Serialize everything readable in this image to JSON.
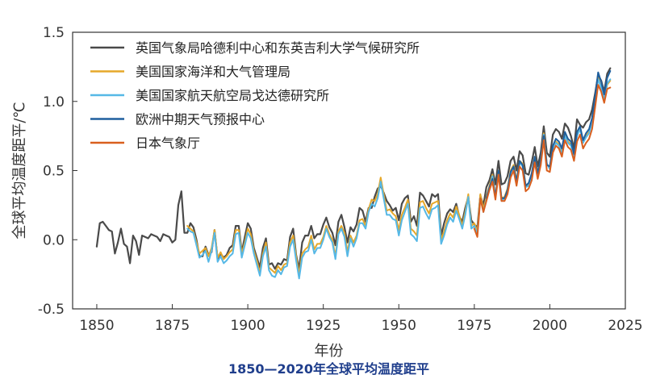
{
  "caption": "1850—2020年全球平均温度距平",
  "chart_data": {
    "type": "line",
    "xlabel": "年份",
    "ylabel": "全球平均温度距平/℃",
    "xlim": [
      1842,
      2025
    ],
    "ylim": [
      -0.5,
      1.5
    ],
    "xticks": [
      "1850",
      "1875",
      "1900",
      "1925",
      "1950",
      "1975",
      "2000",
      "2025"
    ],
    "yticks": [
      "-0.5",
      "0.0",
      "0.5",
      "1.0",
      "1.5"
    ],
    "legend_position": "top-left",
    "grid": false,
    "series": [
      {
        "name": "英国气象局哈德利中心和东英吉利大学气候研究所",
        "color": "#4a4a4a",
        "x": [
          1850,
          1851,
          1852,
          1853,
          1854,
          1855,
          1856,
          1857,
          1858,
          1859,
          1860,
          1861,
          1862,
          1863,
          1864,
          1865,
          1866,
          1867,
          1868,
          1869,
          1870,
          1871,
          1872,
          1873,
          1874,
          1875,
          1876,
          1877,
          1878,
          1879,
          1880,
          1881,
          1882,
          1883,
          1884,
          1885,
          1886,
          1887,
          1888,
          1889,
          1890,
          1891,
          1892,
          1893,
          1894,
          1895,
          1896,
          1897,
          1898,
          1899,
          1900,
          1901,
          1902,
          1903,
          1904,
          1905,
          1906,
          1907,
          1908,
          1909,
          1910,
          1911,
          1912,
          1913,
          1914,
          1915,
          1916,
          1917,
          1918,
          1919,
          1920,
          1921,
          1922,
          1923,
          1924,
          1925,
          1926,
          1927,
          1928,
          1929,
          1930,
          1931,
          1932,
          1933,
          1934,
          1935,
          1936,
          1937,
          1938,
          1939,
          1940,
          1941,
          1942,
          1943,
          1944,
          1945,
          1946,
          1947,
          1948,
          1949,
          1950,
          1951,
          1952,
          1953,
          1954,
          1955,
          1956,
          1957,
          1958,
          1959,
          1960,
          1961,
          1962,
          1963,
          1964,
          1965,
          1966,
          1967,
          1968,
          1969,
          1970,
          1971,
          1972,
          1973,
          1974,
          1975,
          1976,
          1977,
          1978,
          1979,
          1980,
          1981,
          1982,
          1983,
          1984,
          1985,
          1986,
          1987,
          1988,
          1989,
          1990,
          1991,
          1992,
          1993,
          1994,
          1995,
          1996,
          1997,
          1998,
          1999,
          2000,
          2001,
          2002,
          2003,
          2004,
          2005,
          2006,
          2007,
          2008,
          2009,
          2010,
          2011,
          2012,
          2013,
          2014,
          2015,
          2016,
          2017,
          2018,
          2019,
          2020
        ],
        "y": [
          -0.05,
          0.12,
          0.13,
          0.1,
          0.07,
          0.06,
          -0.1,
          -0.02,
          0.08,
          -0.03,
          -0.05,
          -0.17,
          0.03,
          -0.01,
          -0.11,
          0.03,
          0.02,
          0.01,
          0.04,
          0.03,
          0.02,
          -0.01,
          0.04,
          0.03,
          0.02,
          -0.02,
          0.0,
          0.25,
          0.35,
          0.05,
          0.05,
          0.12,
          0.09,
          0.0,
          -0.12,
          -0.12,
          -0.05,
          -0.11,
          -0.09,
          0.07,
          -0.14,
          -0.1,
          -0.13,
          -0.11,
          -0.06,
          -0.04,
          0.1,
          0.1,
          -0.09,
          0.02,
          0.12,
          0.08,
          -0.06,
          -0.13,
          -0.2,
          -0.06,
          0.01,
          -0.18,
          -0.17,
          -0.21,
          -0.17,
          -0.18,
          -0.14,
          -0.15,
          0.02,
          0.08,
          -0.11,
          -0.21,
          -0.02,
          0.03,
          0.03,
          0.1,
          0.01,
          0.04,
          0.04,
          0.11,
          0.16,
          0.09,
          0.05,
          -0.04,
          0.13,
          0.18,
          0.09,
          -0.02,
          0.09,
          0.06,
          0.11,
          0.23,
          0.21,
          0.13,
          0.23,
          0.23,
          0.31,
          0.37,
          0.39,
          0.34,
          0.28,
          0.25,
          0.21,
          0.23,
          0.14,
          0.26,
          0.3,
          0.32,
          0.13,
          0.17,
          0.1,
          0.34,
          0.32,
          0.28,
          0.24,
          0.33,
          0.31,
          0.33,
          0.03,
          0.12,
          0.19,
          0.22,
          0.2,
          0.26,
          0.17,
          0.13,
          0.23,
          0.31,
          0.14,
          0.11,
          0.09,
          0.32,
          0.25,
          0.38,
          0.43,
          0.51,
          0.4,
          0.57,
          0.4,
          0.41,
          0.46,
          0.57,
          0.6,
          0.5,
          0.64,
          0.61,
          0.48,
          0.47,
          0.56,
          0.67,
          0.53,
          0.63,
          0.82,
          0.63,
          0.6,
          0.76,
          0.8,
          0.78,
          0.73,
          0.84,
          0.81,
          0.75,
          0.66,
          0.87,
          0.83,
          0.81,
          0.85,
          0.87,
          0.94,
          1.06,
          1.19,
          1.15,
          1.07,
          1.2,
          1.24
        ]
      },
      {
        "name": "美国国家海洋和大气管理局",
        "color": "#e6a82a",
        "x": [
          1880,
          1881,
          1882,
          1883,
          1884,
          1885,
          1886,
          1887,
          1888,
          1889,
          1890,
          1891,
          1892,
          1893,
          1894,
          1895,
          1896,
          1897,
          1898,
          1899,
          1900,
          1901,
          1902,
          1903,
          1904,
          1905,
          1906,
          1907,
          1908,
          1909,
          1910,
          1911,
          1912,
          1913,
          1914,
          1915,
          1916,
          1917,
          1918,
          1919,
          1920,
          1921,
          1922,
          1923,
          1924,
          1925,
          1926,
          1927,
          1928,
          1929,
          1930,
          1931,
          1932,
          1933,
          1934,
          1935,
          1936,
          1937,
          1938,
          1939,
          1940,
          1941,
          1942,
          1943,
          1944,
          1945,
          1946,
          1947,
          1948,
          1949,
          1950,
          1951,
          1952,
          1953,
          1954,
          1955,
          1956,
          1957,
          1958,
          1959,
          1960,
          1961,
          1962,
          1963,
          1964,
          1965,
          1966,
          1967,
          1968,
          1969,
          1970,
          1971,
          1972,
          1973,
          1974,
          1975,
          1976,
          1977,
          1978,
          1979,
          1980,
          1981,
          1982,
          1983,
          1984,
          1985,
          1986,
          1987,
          1988,
          1989,
          1990,
          1991,
          1992,
          1993,
          1994,
          1995,
          1996,
          1997,
          1998,
          1999,
          2000,
          2001,
          2002,
          2003,
          2004,
          2005,
          2006,
          2007,
          2008,
          2009,
          2010,
          2011,
          2012,
          2013,
          2014,
          2015,
          2016,
          2017,
          2018,
          2019,
          2020
        ],
        "y": [
          0.1,
          0.08,
          0.06,
          -0.02,
          -0.1,
          -0.08,
          -0.06,
          -0.12,
          -0.06,
          0.07,
          -0.13,
          -0.09,
          -0.14,
          -0.12,
          -0.09,
          -0.07,
          0.07,
          0.07,
          -0.1,
          -0.02,
          0.08,
          0.04,
          -0.08,
          -0.15,
          -0.24,
          -0.1,
          -0.02,
          -0.2,
          -0.22,
          -0.24,
          -0.19,
          -0.22,
          -0.18,
          -0.17,
          -0.02,
          0.03,
          -0.12,
          -0.25,
          -0.1,
          -0.07,
          -0.05,
          0.03,
          -0.07,
          -0.03,
          -0.03,
          0.02,
          0.1,
          0.04,
          0.0,
          -0.12,
          0.06,
          0.1,
          0.05,
          -0.09,
          0.03,
          -0.02,
          0.03,
          0.14,
          0.15,
          0.1,
          0.22,
          0.29,
          0.28,
          0.33,
          0.45,
          0.33,
          0.21,
          0.22,
          0.19,
          0.17,
          0.07,
          0.18,
          0.23,
          0.29,
          0.08,
          0.06,
          0.03,
          0.27,
          0.28,
          0.23,
          0.19,
          0.26,
          0.27,
          0.28,
          0.0,
          0.06,
          0.14,
          0.19,
          0.16,
          0.24,
          0.18,
          0.1,
          0.2,
          0.33,
          0.1,
          0.12,
          0.06,
          0.33,
          0.22,
          0.31,
          0.39,
          0.47,
          0.31,
          0.5,
          0.3,
          0.31,
          0.37,
          0.5,
          0.54,
          0.43,
          0.57,
          0.55,
          0.39,
          0.4,
          0.47,
          0.6,
          0.49,
          0.57,
          0.77,
          0.55,
          0.52,
          0.66,
          0.71,
          0.69,
          0.63,
          0.76,
          0.71,
          0.69,
          0.6,
          0.76,
          0.81,
          0.71,
          0.75,
          0.78,
          0.86,
          1.0,
          1.17,
          1.1,
          1.0,
          1.12,
          1.15
        ]
      },
      {
        "name": "美国国家航天航空局戈达德研究所",
        "color": "#56b8e6",
        "x": [
          1880,
          1881,
          1882,
          1883,
          1884,
          1885,
          1886,
          1887,
          1888,
          1889,
          1890,
          1891,
          1892,
          1893,
          1894,
          1895,
          1896,
          1897,
          1898,
          1899,
          1900,
          1901,
          1902,
          1903,
          1904,
          1905,
          1906,
          1907,
          1908,
          1909,
          1910,
          1911,
          1912,
          1913,
          1914,
          1915,
          1916,
          1917,
          1918,
          1919,
          1920,
          1921,
          1922,
          1923,
          1924,
          1925,
          1926,
          1927,
          1928,
          1929,
          1930,
          1931,
          1932,
          1933,
          1934,
          1935,
          1936,
          1937,
          1938,
          1939,
          1940,
          1941,
          1942,
          1943,
          1944,
          1945,
          1946,
          1947,
          1948,
          1949,
          1950,
          1951,
          1952,
          1953,
          1954,
          1955,
          1956,
          1957,
          1958,
          1959,
          1960,
          1961,
          1962,
          1963,
          1964,
          1965,
          1966,
          1967,
          1968,
          1969,
          1970,
          1971,
          1972,
          1973,
          1974,
          1975,
          1976,
          1977,
          1978,
          1979,
          1980,
          1981,
          1982,
          1983,
          1984,
          1985,
          1986,
          1987,
          1988,
          1989,
          1990,
          1991,
          1992,
          1993,
          1994,
          1995,
          1996,
          1997,
          1998,
          1999,
          2000,
          2001,
          2002,
          2003,
          2004,
          2005,
          2006,
          2007,
          2008,
          2009,
          2010,
          2011,
          2012,
          2013,
          2014,
          2015,
          2016,
          2017,
          2018,
          2019,
          2020
        ],
        "y": [
          0.08,
          0.06,
          0.05,
          -0.04,
          -0.13,
          -0.11,
          -0.08,
          -0.16,
          -0.08,
          0.05,
          -0.16,
          -0.12,
          -0.17,
          -0.15,
          -0.12,
          -0.1,
          0.04,
          0.05,
          -0.13,
          -0.04,
          0.05,
          0.01,
          -0.1,
          -0.18,
          -0.26,
          -0.12,
          -0.05,
          -0.22,
          -0.26,
          -0.27,
          -0.22,
          -0.25,
          -0.2,
          -0.19,
          -0.05,
          0.0,
          -0.15,
          -0.28,
          -0.13,
          -0.09,
          -0.08,
          0.0,
          -0.1,
          -0.06,
          -0.06,
          0.0,
          0.08,
          0.02,
          -0.02,
          -0.14,
          0.04,
          0.08,
          0.02,
          -0.12,
          0.01,
          -0.05,
          0.01,
          0.12,
          0.12,
          0.08,
          0.2,
          0.26,
          0.24,
          0.3,
          0.42,
          0.3,
          0.18,
          0.18,
          0.15,
          0.14,
          0.03,
          0.14,
          0.2,
          0.26,
          0.04,
          0.02,
          -0.01,
          0.23,
          0.24,
          0.19,
          0.15,
          0.22,
          0.23,
          0.25,
          -0.03,
          0.03,
          0.11,
          0.16,
          0.13,
          0.21,
          0.15,
          0.08,
          0.18,
          0.31,
          0.08,
          0.1,
          0.04,
          0.3,
          0.2,
          0.29,
          0.37,
          0.46,
          0.3,
          0.49,
          0.28,
          0.3,
          0.35,
          0.48,
          0.52,
          0.41,
          0.56,
          0.53,
          0.38,
          0.39,
          0.46,
          0.59,
          0.47,
          0.56,
          0.76,
          0.55,
          0.51,
          0.65,
          0.7,
          0.68,
          0.62,
          0.75,
          0.7,
          0.68,
          0.59,
          0.75,
          0.8,
          0.7,
          0.74,
          0.77,
          0.85,
          1.0,
          1.16,
          1.1,
          1.01,
          1.13,
          1.16
        ]
      },
      {
        "name": "欧洲中期天气预报中心",
        "color": "#1f5f9e",
        "x": [
          1979,
          1980,
          1981,
          1982,
          1983,
          1984,
          1985,
          1986,
          1987,
          1988,
          1989,
          1990,
          1991,
          1992,
          1993,
          1994,
          1995,
          1996,
          1997,
          1998,
          1999,
          2000,
          2001,
          2002,
          2003,
          2004,
          2005,
          2006,
          2007,
          2008,
          2009,
          2010,
          2011,
          2012,
          2013,
          2014,
          2015,
          2016,
          2017,
          2018,
          2019,
          2020
        ],
        "y": [
          0.3,
          0.38,
          0.44,
          0.31,
          0.5,
          0.3,
          0.3,
          0.36,
          0.49,
          0.53,
          0.42,
          0.57,
          0.54,
          0.39,
          0.41,
          0.48,
          0.6,
          0.48,
          0.58,
          0.75,
          0.54,
          0.53,
          0.68,
          0.73,
          0.71,
          0.66,
          0.78,
          0.73,
          0.71,
          0.62,
          0.78,
          0.82,
          0.72,
          0.77,
          0.8,
          0.88,
          1.04,
          1.21,
          1.14,
          1.05,
          1.17,
          1.22
        ]
      },
      {
        "name": "日本气象厅",
        "color": "#d95f1e",
        "x": [
          1975,
          1976,
          1977,
          1978,
          1979,
          1980,
          1981,
          1982,
          1983,
          1984,
          1985,
          1986,
          1987,
          1988,
          1989,
          1990,
          1991,
          1992,
          1993,
          1994,
          1995,
          1996,
          1997,
          1998,
          1999,
          2000,
          2001,
          2002,
          2003,
          2004,
          2005,
          2006,
          2007,
          2008,
          2009,
          2010,
          2011,
          2012,
          2013,
          2014,
          2015,
          2016,
          2017,
          2018,
          2019,
          2020
        ],
        "y": [
          0.08,
          0.02,
          0.3,
          0.2,
          0.28,
          0.36,
          0.42,
          0.29,
          0.47,
          0.28,
          0.28,
          0.33,
          0.45,
          0.5,
          0.39,
          0.53,
          0.5,
          0.35,
          0.37,
          0.43,
          0.56,
          0.44,
          0.54,
          0.72,
          0.5,
          0.49,
          0.63,
          0.68,
          0.66,
          0.6,
          0.72,
          0.67,
          0.65,
          0.57,
          0.71,
          0.76,
          0.66,
          0.7,
          0.73,
          0.8,
          0.96,
          1.12,
          1.07,
          0.99,
          1.09,
          1.1
        ]
      }
    ]
  }
}
